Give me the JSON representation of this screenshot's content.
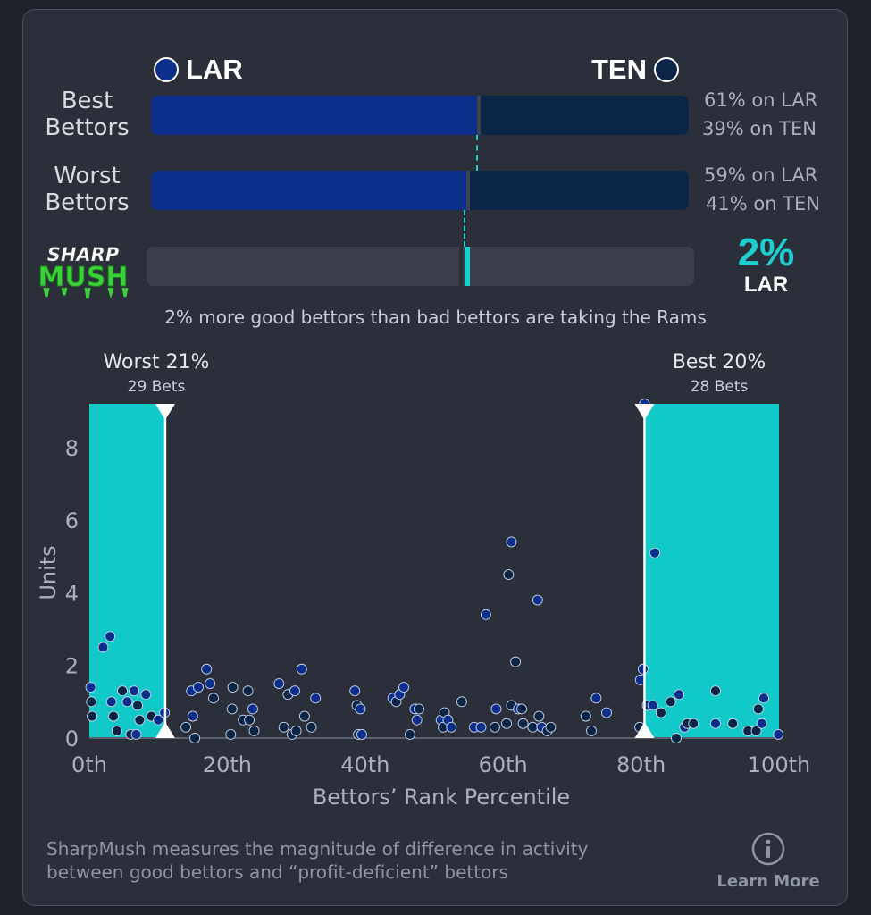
{
  "matchup": {
    "left_team": "LAR",
    "right_team": "TEN",
    "left_color": "#0b2f8a",
    "right_color": "#0b2547",
    "accent": "#1fcfcf"
  },
  "best_bettors": {
    "label_line1": "Best",
    "label_line2": "Bettors",
    "left_pct_text": "61% on LAR",
    "right_pct_text": "39% on TEN",
    "left_share": 0.61
  },
  "worst_bettors": {
    "label_line1": "Worst",
    "label_line2": "Bettors",
    "left_pct_text": "59% on LAR",
    "right_pct_text": "41% on TEN",
    "left_share": 0.59
  },
  "sharpmush": {
    "logo_line1": "SHARP",
    "logo_line2": "MUSH",
    "value_text": "2%",
    "team_text": "LAR",
    "difference": 0.02,
    "caption": "2% more good bettors than bad bettors are taking the Rams"
  },
  "chart_data": {
    "type": "scatter",
    "xlabel": "Bettors’ Rank Percentile",
    "ylabel": "Units",
    "xlim": [
      0,
      100
    ],
    "ylim": [
      0,
      9.2
    ],
    "x_ticks": [
      0,
      20,
      40,
      60,
      80,
      100
    ],
    "x_tick_labels": [
      "0th",
      "20th",
      "40th",
      "60th",
      "80th",
      "100th"
    ],
    "y_ticks": [
      0,
      2,
      4,
      6,
      8
    ],
    "y_tick_labels": [
      "0",
      "2",
      "4",
      "6",
      "8"
    ],
    "grid": false,
    "regions": [
      {
        "name": "Worst 21%",
        "sublabel": "29 Bets",
        "x_start": 0,
        "x_end": 11
      },
      {
        "name": "Best 20%",
        "sublabel": "28 Bets",
        "x_start": 80.5,
        "x_end": 100
      }
    ],
    "colors": {
      "lar": "#0b2f8a",
      "ten": "#0b2547"
    },
    "points": [
      {
        "x": 0.2,
        "y": 1.4,
        "team": "LAR"
      },
      {
        "x": 0.3,
        "y": 1.0,
        "team": "TEN"
      },
      {
        "x": 0.4,
        "y": 0.6,
        "team": "TEN"
      },
      {
        "x": 2.0,
        "y": 2.5,
        "team": "LAR"
      },
      {
        "x": 3.0,
        "y": 2.8,
        "team": "LAR"
      },
      {
        "x": 3.2,
        "y": 1.0,
        "team": "LAR"
      },
      {
        "x": 3.5,
        "y": 0.6,
        "team": "TEN"
      },
      {
        "x": 4.0,
        "y": 0.2,
        "team": "TEN"
      },
      {
        "x": 4.8,
        "y": 1.3,
        "team": "TEN"
      },
      {
        "x": 5.5,
        "y": 1.0,
        "team": "LAR"
      },
      {
        "x": 6.0,
        "y": 0.1,
        "team": "TEN"
      },
      {
        "x": 6.5,
        "y": 1.3,
        "team": "LAR"
      },
      {
        "x": 7.0,
        "y": 0.9,
        "team": "TEN"
      },
      {
        "x": 7.3,
        "y": 0.5,
        "team": "TEN"
      },
      {
        "x": 6.8,
        "y": 0.1,
        "team": "LAR"
      },
      {
        "x": 8.2,
        "y": 1.2,
        "team": "LAR"
      },
      {
        "x": 9.0,
        "y": 0.6,
        "team": "TEN"
      },
      {
        "x": 10.0,
        "y": 0.5,
        "team": "LAR"
      },
      {
        "x": 10.9,
        "y": 0.7,
        "team": "LAR"
      },
      {
        "x": 14.0,
        "y": 0.3,
        "team": "TEN"
      },
      {
        "x": 14.8,
        "y": 1.3,
        "team": "LAR"
      },
      {
        "x": 15.0,
        "y": 0.6,
        "team": "LAR"
      },
      {
        "x": 15.3,
        "y": 0.0,
        "team": "TEN"
      },
      {
        "x": 15.8,
        "y": 1.4,
        "team": "LAR"
      },
      {
        "x": 17.0,
        "y": 1.9,
        "team": "LAR"
      },
      {
        "x": 17.5,
        "y": 1.5,
        "team": "LAR"
      },
      {
        "x": 18.0,
        "y": 1.1,
        "team": "TEN"
      },
      {
        "x": 20.5,
        "y": 0.1,
        "team": "TEN"
      },
      {
        "x": 20.7,
        "y": 0.8,
        "team": "TEN"
      },
      {
        "x": 20.8,
        "y": 1.4,
        "team": "TEN"
      },
      {
        "x": 22.3,
        "y": 0.5,
        "team": "TEN"
      },
      {
        "x": 23.0,
        "y": 1.3,
        "team": "TEN"
      },
      {
        "x": 23.2,
        "y": 0.5,
        "team": "TEN"
      },
      {
        "x": 23.7,
        "y": 0.8,
        "team": "LAR"
      },
      {
        "x": 23.9,
        "y": 0.2,
        "team": "TEN"
      },
      {
        "x": 27.5,
        "y": 1.5,
        "team": "LAR"
      },
      {
        "x": 28.2,
        "y": 0.3,
        "team": "TEN"
      },
      {
        "x": 28.8,
        "y": 1.2,
        "team": "TEN"
      },
      {
        "x": 29.4,
        "y": 0.1,
        "team": "TEN"
      },
      {
        "x": 29.8,
        "y": 1.3,
        "team": "LAR"
      },
      {
        "x": 30.0,
        "y": 0.2,
        "team": "TEN"
      },
      {
        "x": 30.8,
        "y": 1.9,
        "team": "LAR"
      },
      {
        "x": 31.2,
        "y": 0.6,
        "team": "TEN"
      },
      {
        "x": 32.2,
        "y": 0.3,
        "team": "TEN"
      },
      {
        "x": 32.8,
        "y": 1.1,
        "team": "LAR"
      },
      {
        "x": 38.5,
        "y": 1.3,
        "team": "LAR"
      },
      {
        "x": 38.8,
        "y": 0.9,
        "team": "TEN"
      },
      {
        "x": 39.3,
        "y": 0.8,
        "team": "LAR"
      },
      {
        "x": 39.0,
        "y": 0.1,
        "team": "TEN"
      },
      {
        "x": 39.5,
        "y": 0.1,
        "team": "LAR"
      },
      {
        "x": 44.0,
        "y": 1.1,
        "team": "LAR"
      },
      {
        "x": 44.5,
        "y": 1.0,
        "team": "TEN"
      },
      {
        "x": 45.0,
        "y": 1.2,
        "team": "LAR"
      },
      {
        "x": 45.6,
        "y": 1.4,
        "team": "LAR"
      },
      {
        "x": 46.5,
        "y": 0.1,
        "team": "TEN"
      },
      {
        "x": 47.2,
        "y": 0.8,
        "team": "LAR"
      },
      {
        "x": 47.5,
        "y": 0.5,
        "team": "LAR"
      },
      {
        "x": 47.8,
        "y": 0.8,
        "team": "TEN"
      },
      {
        "x": 51.0,
        "y": 0.5,
        "team": "LAR"
      },
      {
        "x": 51.3,
        "y": 0.3,
        "team": "TEN"
      },
      {
        "x": 51.5,
        "y": 0.7,
        "team": "TEN"
      },
      {
        "x": 52.0,
        "y": 0.5,
        "team": "LAR"
      },
      {
        "x": 52.5,
        "y": 0.3,
        "team": "LAR"
      },
      {
        "x": 54.0,
        "y": 1.0,
        "team": "TEN"
      },
      {
        "x": 55.8,
        "y": 0.3,
        "team": "LAR"
      },
      {
        "x": 56.8,
        "y": 0.3,
        "team": "LAR"
      },
      {
        "x": 57.5,
        "y": 3.4,
        "team": "LAR"
      },
      {
        "x": 58.8,
        "y": 0.3,
        "team": "TEN"
      },
      {
        "x": 59.0,
        "y": 0.8,
        "team": "LAR"
      },
      {
        "x": 60.5,
        "y": 0.4,
        "team": "TEN"
      },
      {
        "x": 60.8,
        "y": 4.5,
        "team": "TEN"
      },
      {
        "x": 61.2,
        "y": 5.4,
        "team": "LAR"
      },
      {
        "x": 61.2,
        "y": 0.9,
        "team": "TEN"
      },
      {
        "x": 61.8,
        "y": 2.1,
        "team": "TEN"
      },
      {
        "x": 62.2,
        "y": 0.8,
        "team": "LAR"
      },
      {
        "x": 62.7,
        "y": 0.8,
        "team": "TEN"
      },
      {
        "x": 62.9,
        "y": 0.4,
        "team": "TEN"
      },
      {
        "x": 64.3,
        "y": 0.3,
        "team": "TEN"
      },
      {
        "x": 65.0,
        "y": 3.8,
        "team": "LAR"
      },
      {
        "x": 65.2,
        "y": 0.6,
        "team": "TEN"
      },
      {
        "x": 65.6,
        "y": 0.3,
        "team": "LAR"
      },
      {
        "x": 66.4,
        "y": 0.2,
        "team": "TEN"
      },
      {
        "x": 66.9,
        "y": 0.3,
        "team": "TEN"
      },
      {
        "x": 72.0,
        "y": 0.6,
        "team": "TEN"
      },
      {
        "x": 72.8,
        "y": 0.2,
        "team": "TEN"
      },
      {
        "x": 73.5,
        "y": 1.1,
        "team": "LAR"
      },
      {
        "x": 75.0,
        "y": 0.7,
        "team": "LAR"
      },
      {
        "x": 79.8,
        "y": 0.3,
        "team": "TEN"
      },
      {
        "x": 79.9,
        "y": 1.6,
        "team": "LAR"
      },
      {
        "x": 80.3,
        "y": 1.9,
        "team": "LAR"
      },
      {
        "x": 80.5,
        "y": 9.2,
        "team": "LAR"
      },
      {
        "x": 80.9,
        "y": 0.9,
        "team": "LAR"
      },
      {
        "x": 82.0,
        "y": 5.1,
        "team": "LAR"
      },
      {
        "x": 81.7,
        "y": 0.9,
        "team": "LAR"
      },
      {
        "x": 82.9,
        "y": 0.7,
        "team": "TEN"
      },
      {
        "x": 84.3,
        "y": 1.0,
        "team": "TEN"
      },
      {
        "x": 85.1,
        "y": 0.0,
        "team": "TEN"
      },
      {
        "x": 85.5,
        "y": 1.2,
        "team": "LAR"
      },
      {
        "x": 86.3,
        "y": 0.3,
        "team": "LAR"
      },
      {
        "x": 86.7,
        "y": 0.4,
        "team": "TEN"
      },
      {
        "x": 87.6,
        "y": 0.4,
        "team": "TEN"
      },
      {
        "x": 90.8,
        "y": 0.4,
        "team": "LAR"
      },
      {
        "x": 90.8,
        "y": 1.3,
        "team": "TEN"
      },
      {
        "x": 93.3,
        "y": 0.4,
        "team": "TEN"
      },
      {
        "x": 95.5,
        "y": 0.2,
        "team": "TEN"
      },
      {
        "x": 96.7,
        "y": 0.2,
        "team": "TEN"
      },
      {
        "x": 97.0,
        "y": 0.8,
        "team": "TEN"
      },
      {
        "x": 97.5,
        "y": 0.4,
        "team": "LAR"
      },
      {
        "x": 97.8,
        "y": 1.1,
        "team": "LAR"
      },
      {
        "x": 99.9,
        "y": 0.1,
        "team": "LAR"
      }
    ]
  },
  "footer": {
    "description_line1": "SharpMush measures the magnitude of difference in activity",
    "description_line2": "between good bettors and “profit-deficient” bettors",
    "learn_more_label": "Learn More"
  }
}
